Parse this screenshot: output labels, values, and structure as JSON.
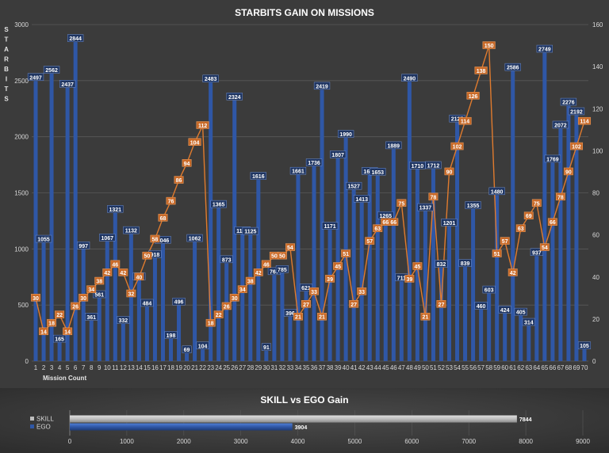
{
  "chart_data": [
    {
      "type": "bar-line",
      "title": "STARBITS GAIN ON MISSIONS",
      "ylabel": "STARBITS",
      "xlabel": "Mission Count",
      "ylim": [
        0,
        3000
      ],
      "y2lim": [
        0,
        160
      ],
      "yticks": [
        0,
        500,
        1000,
        1500,
        2000,
        2500,
        3000
      ],
      "y2ticks": [
        0,
        20,
        40,
        60,
        80,
        100,
        120,
        140,
        160
      ],
      "grid": true,
      "colors": {
        "bars": "#2f57a6",
        "line": "#e07b2e",
        "line_label": "#c96a28",
        "bar_label": "#1f3561"
      },
      "categories": [
        "1",
        "2",
        "3",
        "4",
        "5",
        "6",
        "7",
        "8",
        "9",
        "10",
        "11",
        "12",
        "13",
        "14",
        "15",
        "16",
        "17",
        "18",
        "19",
        "20",
        "21",
        "22",
        "23",
        "24",
        "25",
        "26",
        "27",
        "28",
        "29",
        "30",
        "31",
        "32",
        "33",
        "34",
        "35",
        "36",
        "37",
        "38",
        "39",
        "40",
        "41",
        "42",
        "43",
        "44",
        "45",
        "46",
        "47",
        "48",
        "49",
        "50",
        "51",
        "52",
        "53",
        "54",
        "55",
        "56",
        "57",
        "58",
        "59",
        "60",
        "61",
        "62",
        "63",
        "64",
        "65",
        "66",
        "67",
        "68",
        "69",
        "70"
      ],
      "series": [
        {
          "axis": "left",
          "kind": "bar",
          "values": [
            2497,
            1055,
            2562,
            165,
            2437,
            2844,
            997,
            361,
            561,
            1067,
            1321,
            332,
            1132,
            720,
            484,
            918,
            1046,
            198,
            496,
            69,
            1062,
            104,
            2483,
            1365,
            873,
            2324,
            1131,
            1125,
            1616,
            91,
            767,
            785,
            396,
            1661,
            621,
            1736,
            2419,
            1171,
            1807,
            1990,
            1527,
            1413,
            1660,
            1653,
            1265,
            1889,
            711,
            2490,
            1710,
            1337,
            1712,
            832,
            1201,
            2127,
            839,
            1355,
            460,
            603,
            1480,
            424,
            2586,
            405,
            314,
            937,
            2749,
            1769,
            2072,
            2276,
            2192,
            105
          ]
        },
        {
          "axis": "right",
          "kind": "line",
          "values": [
            30,
            14,
            18,
            22,
            14,
            26,
            30,
            34,
            38,
            42,
            46,
            42,
            32,
            40,
            50,
            58,
            68,
            76,
            86,
            94,
            104,
            112,
            18,
            22,
            26,
            30,
            34,
            38,
            42,
            46,
            50,
            50,
            54,
            21,
            27,
            33,
            21,
            39,
            45,
            51,
            27,
            33,
            57,
            63,
            66,
            66,
            75,
            39,
            45,
            21,
            78,
            27,
            90,
            102,
            114,
            126,
            138,
            150,
            51,
            57,
            42,
            63,
            69,
            75,
            54,
            66,
            78,
            90,
            102,
            114
          ]
        }
      ]
    },
    {
      "type": "bar",
      "orientation": "horizontal",
      "title": "SKILL vs EGO Gain",
      "categories": [
        "SKILL",
        "EGO"
      ],
      "values": [
        7844,
        3904
      ],
      "value_labels": [
        "7844",
        "3904"
      ],
      "xlim": [
        0,
        9000
      ],
      "xticks": [
        0,
        1000,
        2000,
        3000,
        4000,
        5000,
        6000,
        7000,
        8000,
        9000
      ],
      "colors": {
        "SKILL": "#bdbdbd",
        "EGO": "#2f57a6"
      }
    }
  ]
}
